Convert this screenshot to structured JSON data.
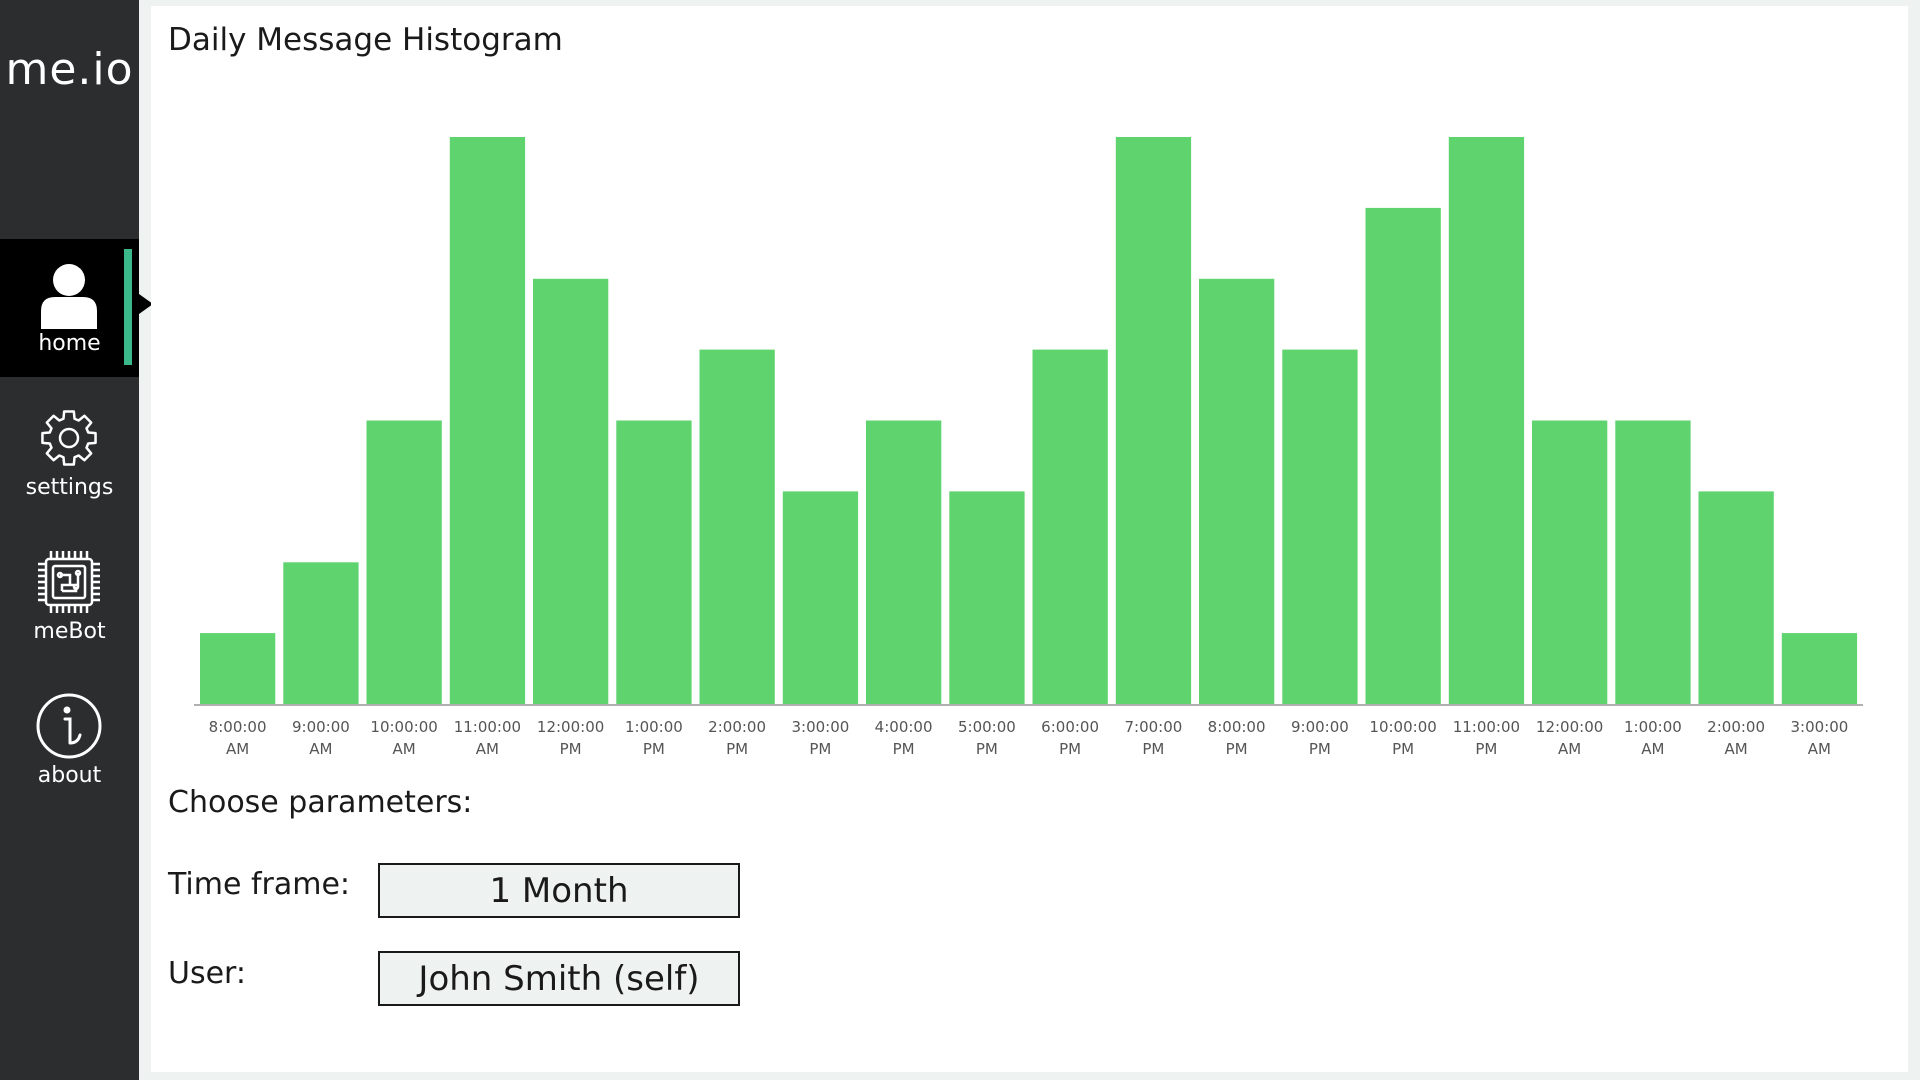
{
  "app": {
    "logo": "me.io"
  },
  "sidebar": {
    "items": [
      {
        "label": "home",
        "icon": "user-icon",
        "active": true
      },
      {
        "label": "settings",
        "icon": "gear-icon",
        "active": false
      },
      {
        "label": "meBot",
        "icon": "chip-icon",
        "active": false
      },
      {
        "label": "about",
        "icon": "info-icon",
        "active": false
      }
    ]
  },
  "main": {
    "chart_title": "Daily Message Histogram",
    "params_title": "Choose parameters:",
    "params": {
      "timeframe_label": "Time frame:",
      "timeframe_value": "1 Month",
      "user_label": "User:",
      "user_value": "John Smith (self)"
    }
  },
  "colors": {
    "bar": "#5fd36e",
    "sidebar_bg": "#2b2d2f",
    "active_accent": "#3bb98b"
  },
  "chart_data": {
    "type": "bar",
    "title": "Daily Message Histogram",
    "xlabel": "",
    "ylabel": "",
    "categories": [
      [
        "8:00:00",
        "AM"
      ],
      [
        "9:00:00",
        "AM"
      ],
      [
        "10:00:00",
        "AM"
      ],
      [
        "11:00:00",
        "AM"
      ],
      [
        "12:00:00",
        "PM"
      ],
      [
        "1:00:00",
        "PM"
      ],
      [
        "2:00:00",
        "PM"
      ],
      [
        "3:00:00",
        "PM"
      ],
      [
        "4:00:00",
        "PM"
      ],
      [
        "5:00:00",
        "PM"
      ],
      [
        "6:00:00",
        "PM"
      ],
      [
        "7:00:00",
        "PM"
      ],
      [
        "8:00:00",
        "PM"
      ],
      [
        "9:00:00",
        "PM"
      ],
      [
        "10:00:00",
        "PM"
      ],
      [
        "11:00:00",
        "PM"
      ],
      [
        "12:00:00",
        "AM"
      ],
      [
        "1:00:00",
        "AM"
      ],
      [
        "2:00:00",
        "AM"
      ],
      [
        "3:00:00",
        "AM"
      ]
    ],
    "values": [
      1,
      2,
      4,
      8,
      6,
      4,
      5,
      3,
      4,
      3,
      5,
      8,
      6,
      5,
      7,
      8,
      4,
      4,
      3,
      1
    ],
    "ylim": [
      0,
      8
    ],
    "grid": false,
    "legend": "none"
  }
}
